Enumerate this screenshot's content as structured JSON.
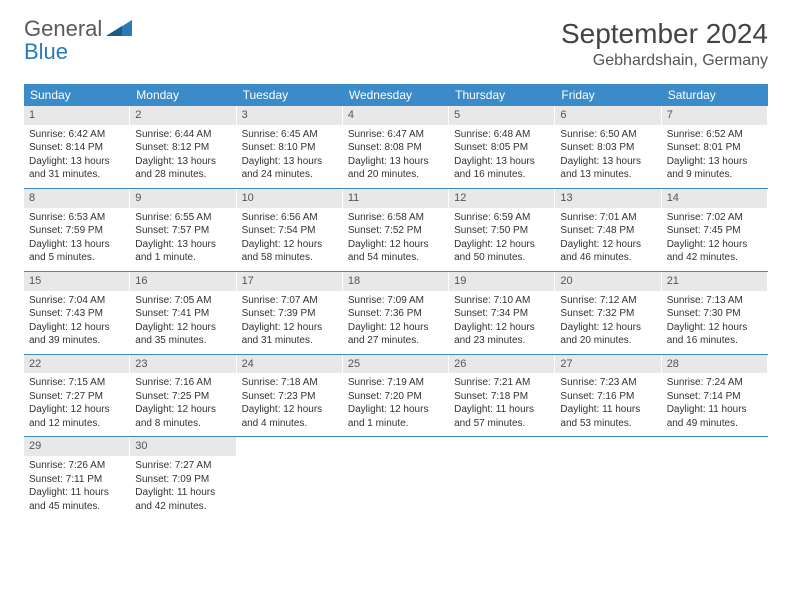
{
  "logo": {
    "text1": "General",
    "text2": "Blue"
  },
  "title": "September 2024",
  "location": "Gebhardshain, Germany",
  "colors": {
    "header_bg": "#3b8bc8",
    "header_text": "#ffffff",
    "daynum_bg": "#e8e8e8",
    "border": "#3b8bc8",
    "body_text": "#333333",
    "logo_gray": "#5a5a5a",
    "logo_blue": "#2a7ab8"
  },
  "day_names": [
    "Sunday",
    "Monday",
    "Tuesday",
    "Wednesday",
    "Thursday",
    "Friday",
    "Saturday"
  ],
  "weeks": [
    [
      {
        "n": "1",
        "sr": "Sunrise: 6:42 AM",
        "ss": "Sunset: 8:14 PM",
        "dl": "Daylight: 13 hours and 31 minutes."
      },
      {
        "n": "2",
        "sr": "Sunrise: 6:44 AM",
        "ss": "Sunset: 8:12 PM",
        "dl": "Daylight: 13 hours and 28 minutes."
      },
      {
        "n": "3",
        "sr": "Sunrise: 6:45 AM",
        "ss": "Sunset: 8:10 PM",
        "dl": "Daylight: 13 hours and 24 minutes."
      },
      {
        "n": "4",
        "sr": "Sunrise: 6:47 AM",
        "ss": "Sunset: 8:08 PM",
        "dl": "Daylight: 13 hours and 20 minutes."
      },
      {
        "n": "5",
        "sr": "Sunrise: 6:48 AM",
        "ss": "Sunset: 8:05 PM",
        "dl": "Daylight: 13 hours and 16 minutes."
      },
      {
        "n": "6",
        "sr": "Sunrise: 6:50 AM",
        "ss": "Sunset: 8:03 PM",
        "dl": "Daylight: 13 hours and 13 minutes."
      },
      {
        "n": "7",
        "sr": "Sunrise: 6:52 AM",
        "ss": "Sunset: 8:01 PM",
        "dl": "Daylight: 13 hours and 9 minutes."
      }
    ],
    [
      {
        "n": "8",
        "sr": "Sunrise: 6:53 AM",
        "ss": "Sunset: 7:59 PM",
        "dl": "Daylight: 13 hours and 5 minutes."
      },
      {
        "n": "9",
        "sr": "Sunrise: 6:55 AM",
        "ss": "Sunset: 7:57 PM",
        "dl": "Daylight: 13 hours and 1 minute."
      },
      {
        "n": "10",
        "sr": "Sunrise: 6:56 AM",
        "ss": "Sunset: 7:54 PM",
        "dl": "Daylight: 12 hours and 58 minutes."
      },
      {
        "n": "11",
        "sr": "Sunrise: 6:58 AM",
        "ss": "Sunset: 7:52 PM",
        "dl": "Daylight: 12 hours and 54 minutes."
      },
      {
        "n": "12",
        "sr": "Sunrise: 6:59 AM",
        "ss": "Sunset: 7:50 PM",
        "dl": "Daylight: 12 hours and 50 minutes."
      },
      {
        "n": "13",
        "sr": "Sunrise: 7:01 AM",
        "ss": "Sunset: 7:48 PM",
        "dl": "Daylight: 12 hours and 46 minutes."
      },
      {
        "n": "14",
        "sr": "Sunrise: 7:02 AM",
        "ss": "Sunset: 7:45 PM",
        "dl": "Daylight: 12 hours and 42 minutes."
      }
    ],
    [
      {
        "n": "15",
        "sr": "Sunrise: 7:04 AM",
        "ss": "Sunset: 7:43 PM",
        "dl": "Daylight: 12 hours and 39 minutes."
      },
      {
        "n": "16",
        "sr": "Sunrise: 7:05 AM",
        "ss": "Sunset: 7:41 PM",
        "dl": "Daylight: 12 hours and 35 minutes."
      },
      {
        "n": "17",
        "sr": "Sunrise: 7:07 AM",
        "ss": "Sunset: 7:39 PM",
        "dl": "Daylight: 12 hours and 31 minutes."
      },
      {
        "n": "18",
        "sr": "Sunrise: 7:09 AM",
        "ss": "Sunset: 7:36 PM",
        "dl": "Daylight: 12 hours and 27 minutes."
      },
      {
        "n": "19",
        "sr": "Sunrise: 7:10 AM",
        "ss": "Sunset: 7:34 PM",
        "dl": "Daylight: 12 hours and 23 minutes."
      },
      {
        "n": "20",
        "sr": "Sunrise: 7:12 AM",
        "ss": "Sunset: 7:32 PM",
        "dl": "Daylight: 12 hours and 20 minutes."
      },
      {
        "n": "21",
        "sr": "Sunrise: 7:13 AM",
        "ss": "Sunset: 7:30 PM",
        "dl": "Daylight: 12 hours and 16 minutes."
      }
    ],
    [
      {
        "n": "22",
        "sr": "Sunrise: 7:15 AM",
        "ss": "Sunset: 7:27 PM",
        "dl": "Daylight: 12 hours and 12 minutes."
      },
      {
        "n": "23",
        "sr": "Sunrise: 7:16 AM",
        "ss": "Sunset: 7:25 PM",
        "dl": "Daylight: 12 hours and 8 minutes."
      },
      {
        "n": "24",
        "sr": "Sunrise: 7:18 AM",
        "ss": "Sunset: 7:23 PM",
        "dl": "Daylight: 12 hours and 4 minutes."
      },
      {
        "n": "25",
        "sr": "Sunrise: 7:19 AM",
        "ss": "Sunset: 7:20 PM",
        "dl": "Daylight: 12 hours and 1 minute."
      },
      {
        "n": "26",
        "sr": "Sunrise: 7:21 AM",
        "ss": "Sunset: 7:18 PM",
        "dl": "Daylight: 11 hours and 57 minutes."
      },
      {
        "n": "27",
        "sr": "Sunrise: 7:23 AM",
        "ss": "Sunset: 7:16 PM",
        "dl": "Daylight: 11 hours and 53 minutes."
      },
      {
        "n": "28",
        "sr": "Sunrise: 7:24 AM",
        "ss": "Sunset: 7:14 PM",
        "dl": "Daylight: 11 hours and 49 minutes."
      }
    ],
    [
      {
        "n": "29",
        "sr": "Sunrise: 7:26 AM",
        "ss": "Sunset: 7:11 PM",
        "dl": "Daylight: 11 hours and 45 minutes."
      },
      {
        "n": "30",
        "sr": "Sunrise: 7:27 AM",
        "ss": "Sunset: 7:09 PM",
        "dl": "Daylight: 11 hours and 42 minutes."
      },
      null,
      null,
      null,
      null,
      null
    ]
  ]
}
